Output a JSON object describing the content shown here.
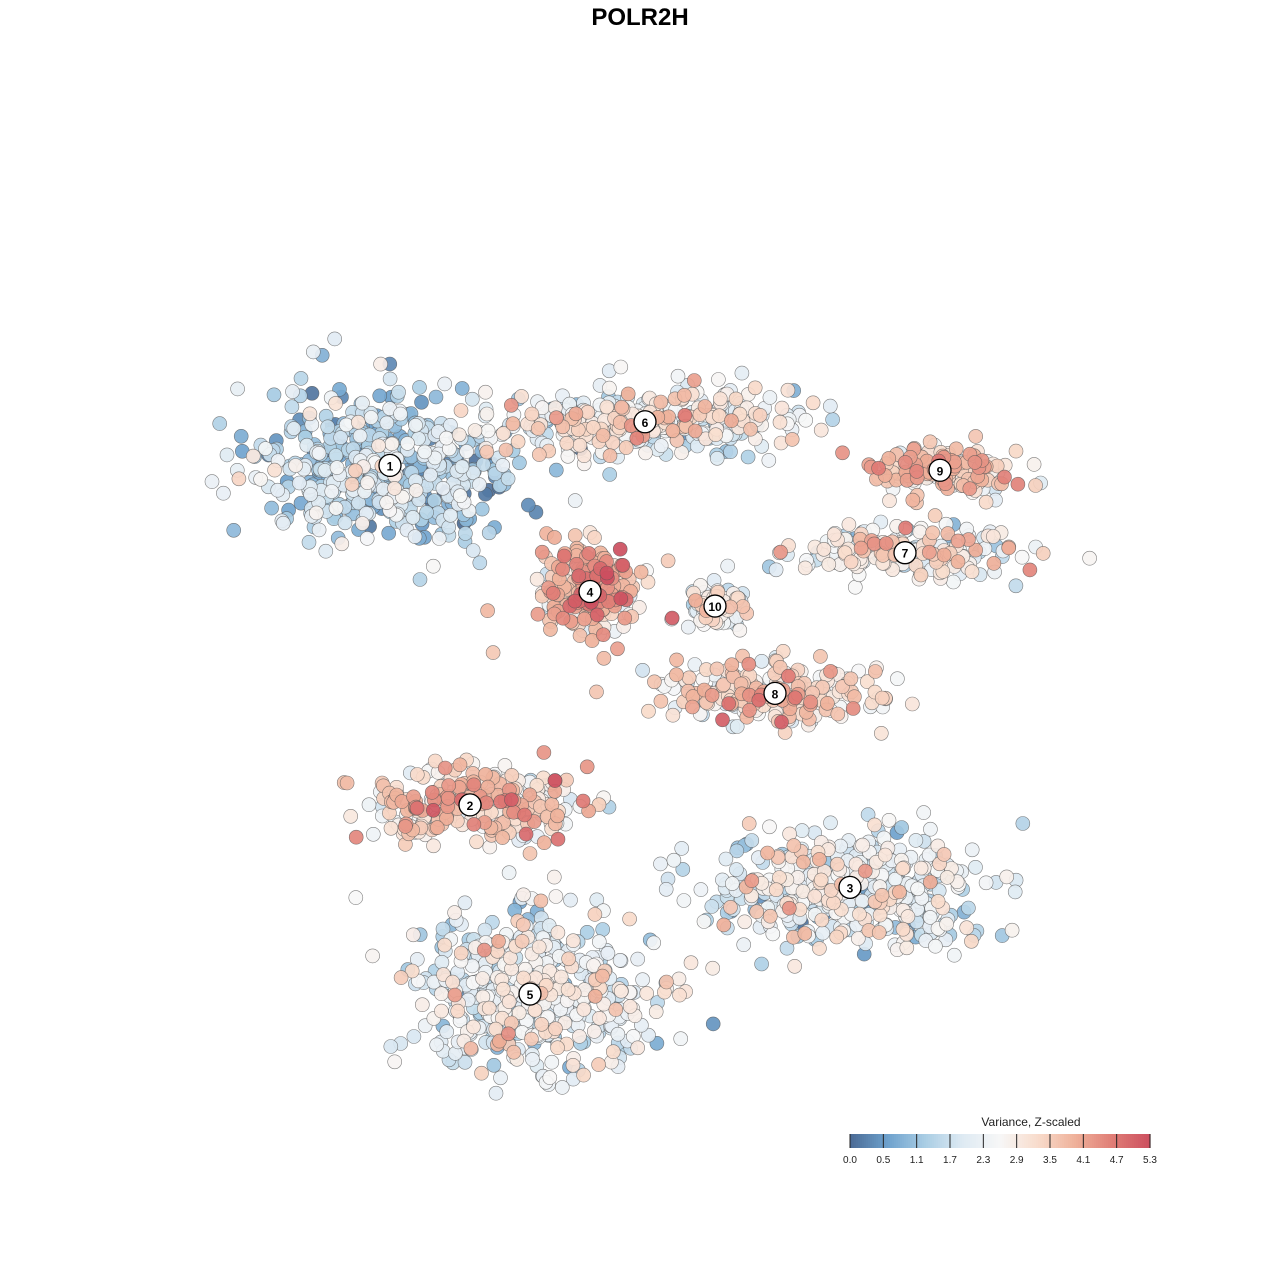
{
  "chart_data": {
    "type": "scatter",
    "title": "POLR2H",
    "xlabel": "",
    "ylabel": "",
    "grid": false,
    "axes_visible": false,
    "legend": {
      "title": "Variance, Z-scaled",
      "position": "bottom-right",
      "ticks": [
        "0.0",
        "0.5",
        "1.1",
        "1.7",
        "2.3",
        "2.9",
        "3.5",
        "4.1",
        "4.7",
        "5.3"
      ],
      "range": [
        0,
        5.3
      ],
      "colors": [
        "#4a6a94",
        "#6da1cd",
        "#a9cde4",
        "#deeaf3",
        "#f7f7f7",
        "#f8dccc",
        "#efb19a",
        "#e07d76",
        "#cc4f5f"
      ]
    },
    "clusters": [
      {
        "label": "1",
        "x": -25.0,
        "y": 18.0,
        "mean": 1.5,
        "spread": [
          14.0,
          9.0
        ],
        "n": 540
      },
      {
        "label": "6",
        "x": 0.5,
        "y": 22.5,
        "mean": 2.6,
        "spread": [
          16.0,
          4.0
        ],
        "n": 360
      },
      {
        "label": "4",
        "x": -5.0,
        "y": 5.0,
        "mean": 3.7,
        "spread": [
          5.5,
          5.0
        ],
        "n": 260
      },
      {
        "label": "10",
        "x": 7.5,
        "y": 3.5,
        "mean": 2.4,
        "spread": [
          3.0,
          3.0
        ],
        "n": 90
      },
      {
        "label": "9",
        "x": 30.0,
        "y": 17.5,
        "mean": 3.4,
        "spread": [
          8.0,
          3.0
        ],
        "n": 150
      },
      {
        "label": "7",
        "x": 26.5,
        "y": 9.0,
        "mean": 2.6,
        "spread": [
          13.0,
          3.0
        ],
        "n": 210
      },
      {
        "label": "8",
        "x": 13.5,
        "y": -5.5,
        "mean": 3.1,
        "spread": [
          12.0,
          3.5
        ],
        "n": 260
      },
      {
        "label": "2",
        "x": -17.0,
        "y": -17.0,
        "mean": 3.3,
        "spread": [
          13.0,
          4.0
        ],
        "n": 270
      },
      {
        "label": "3",
        "x": 21.0,
        "y": -25.5,
        "mean": 2.3,
        "spread": [
          15.0,
          6.5
        ],
        "n": 460
      },
      {
        "label": "5",
        "x": -11.0,
        "y": -36.5,
        "mean": 2.3,
        "spread": [
          13.0,
          9.0
        ],
        "n": 520
      }
    ]
  }
}
